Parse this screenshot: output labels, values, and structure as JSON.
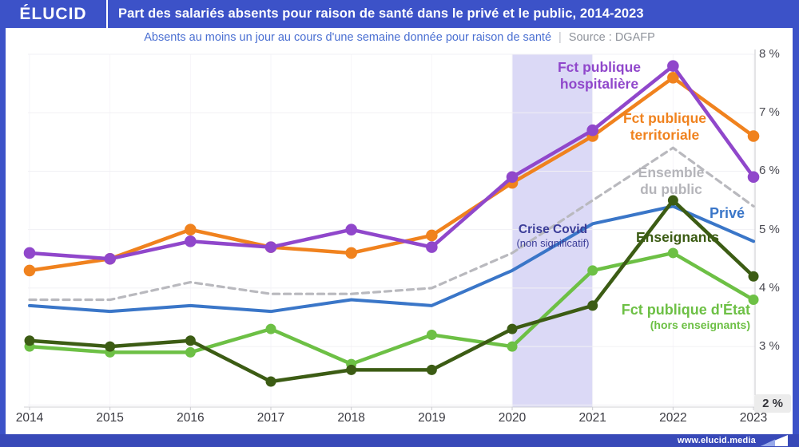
{
  "header": {
    "logo_text": "ÉLUCID"
  },
  "footer": {
    "url": "www.elucid.media"
  },
  "chart_data": {
    "type": "line",
    "title": "Part des salariés absents pour raison de santé dans le privé et le public, 2014-2023",
    "subtitle": "Absents au moins un jour au cours d'une semaine donnée pour raison de santé",
    "subtitle_separator": "|",
    "source": "Source : DGAFP",
    "x": [
      2014,
      2015,
      2016,
      2017,
      2018,
      2019,
      2020,
      2021,
      2022,
      2023
    ],
    "ylim": [
      2,
      8
    ],
    "y_ticks": [
      "8 %",
      "7 %",
      "6 %",
      "5 %",
      "4 %",
      "3 %",
      "2 %"
    ],
    "grid": true,
    "series": [
      {
        "name": "Ensemble du public",
        "color": "#b9b9be",
        "dashed": true,
        "dots": false,
        "width": 3.2,
        "dot_radius": 0,
        "values": [
          3.8,
          3.8,
          4.1,
          3.9,
          3.9,
          4.0,
          4.6,
          5.5,
          6.4,
          5.4
        ]
      },
      {
        "name": "Privé",
        "color": "#3a76c8",
        "dashed": false,
        "dots": false,
        "width": 4,
        "dot_radius": 0,
        "values": [
          3.7,
          3.6,
          3.7,
          3.6,
          3.8,
          3.7,
          4.3,
          5.1,
          5.4,
          4.8
        ]
      },
      {
        "name": "Fct publique d'État (hors enseignants)",
        "color": "#6dc045",
        "dashed": false,
        "dots": true,
        "width": 4.5,
        "dot_radius": 6.5,
        "values": [
          3.0,
          2.9,
          2.9,
          3.3,
          2.7,
          3.2,
          3.0,
          4.3,
          4.6,
          3.8
        ]
      },
      {
        "name": "Enseignants",
        "color": "#3c5c14",
        "dashed": false,
        "dots": true,
        "width": 4.5,
        "dot_radius": 6.5,
        "values": [
          3.1,
          3.0,
          3.1,
          2.4,
          2.6,
          2.6,
          3.3,
          3.7,
          5.5,
          4.2
        ]
      },
      {
        "name": "Fct publique territoriale",
        "color": "#f0821e",
        "dashed": false,
        "dots": true,
        "width": 4.5,
        "dot_radius": 7.3,
        "values": [
          4.3,
          4.5,
          5.0,
          4.7,
          4.6,
          4.9,
          5.8,
          6.6,
          7.6,
          6.6
        ]
      },
      {
        "name": "Fct publique hospitalière",
        "color": "#9047cb",
        "dashed": false,
        "dots": true,
        "width": 4.5,
        "dot_radius": 7.3,
        "values": [
          4.6,
          4.5,
          4.8,
          4.7,
          5.0,
          4.7,
          5.9,
          6.7,
          7.8,
          5.9
        ]
      }
    ],
    "annotations": {
      "covid_band": {
        "from": 2020,
        "to": 2021,
        "color": "#dbd9f6",
        "label": "Crise Covid",
        "sublabel": "(non significatif)"
      }
    },
    "labels": {
      "fph": {
        "line1": "Fct publique",
        "line2": "hospitalière"
      },
      "fpt": {
        "line1": "Fct publique",
        "line2": "territoriale"
      },
      "ensemble": {
        "line1": "Ensemble",
        "line2": "du public"
      },
      "prive": "Privé",
      "enseignants": "Enseignants",
      "fpe": {
        "line1": "Fct publique d'État",
        "line2": "(hors enseignants)"
      }
    },
    "legend_position": "inline-labels"
  }
}
